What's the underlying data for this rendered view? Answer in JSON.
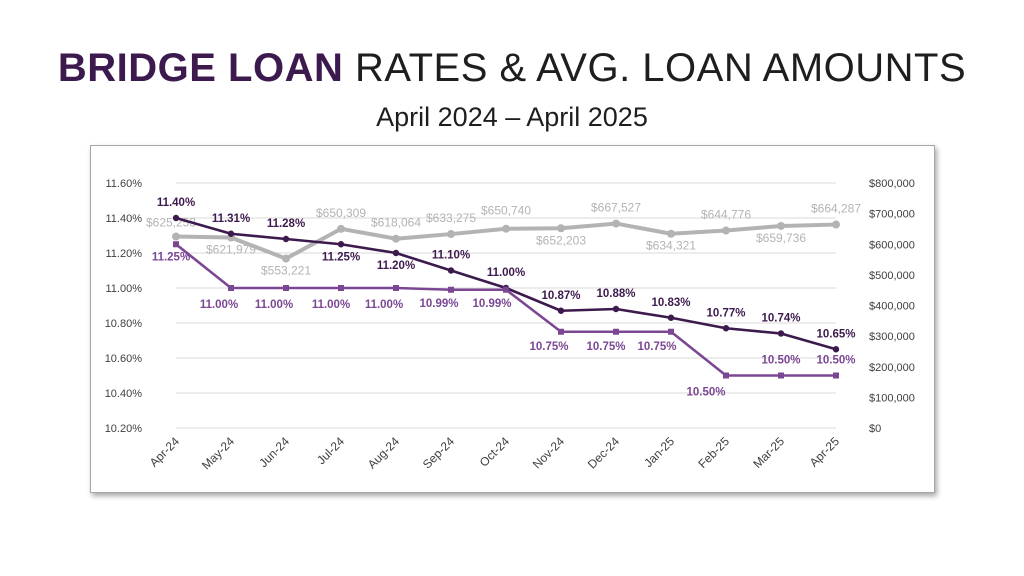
{
  "header": {
    "title_accent": "BRIDGE LOAN",
    "title_rest": "RATES & AVG. LOAN AMOUNTS",
    "subtitle": "April 2024 – April 2025"
  },
  "colors": {
    "rate_dark": "#3d1a4e",
    "rate_purple": "#7b4793",
    "amount_gray": "#b3b3b3",
    "accent_text": "#3d1a4e"
  },
  "chart_data": {
    "type": "line",
    "categories": [
      "Apr-24",
      "May-24",
      "Jun-24",
      "Jul-24",
      "Aug-24",
      "Sep-24",
      "Oct-24",
      "Nov-24",
      "Dec-24",
      "Jan-25",
      "Feb-25",
      "Mar-25",
      "Apr-25"
    ],
    "y_left": {
      "min": 10.2,
      "max": 11.6,
      "step": 0.2,
      "ticks": [
        "10.20%",
        "10.40%",
        "10.60%",
        "10.80%",
        "11.00%",
        "11.20%",
        "11.40%",
        "11.60%"
      ]
    },
    "y_right": {
      "min": 0,
      "max": 800000,
      "step": 100000,
      "ticks": [
        "$0",
        "$100,000",
        "$200,000",
        "$300,000",
        "$400,000",
        "$500,000",
        "$600,000",
        "$700,000",
        "$800,000"
      ]
    },
    "grid": true,
    "series": [
      {
        "axis": "right",
        "color": "#b3b3b3",
        "marker": "circle",
        "values": [
          625253,
          621979,
          553221,
          650309,
          618064,
          633275,
          650740,
          652203,
          667527,
          634321,
          644776,
          659736,
          664287
        ],
        "labels": [
          "$625,253",
          "$621,979",
          "$553,221",
          "$650,309",
          "$618,064",
          "$633,275",
          "$650,740",
          "$652,203",
          "$667,527",
          "$634,321",
          "$644,776",
          "$659,736",
          "$664,287"
        ]
      },
      {
        "axis": "left",
        "color": "#3d1a4e",
        "marker": "circle",
        "values": [
          11.4,
          11.31,
          11.28,
          11.25,
          11.2,
          11.1,
          11.0,
          10.87,
          10.88,
          10.83,
          10.77,
          10.74,
          10.65
        ],
        "labels": [
          "11.40%",
          "11.31%",
          "11.28%",
          "11.25%",
          "11.20%",
          "11.10%",
          "11.00%",
          "10.87%",
          "10.88%",
          "10.83%",
          "10.77%",
          "10.74%",
          "10.65%"
        ]
      },
      {
        "axis": "left",
        "color": "#7b4793",
        "marker": "square",
        "values": [
          11.25,
          11.0,
          11.0,
          11.0,
          11.0,
          10.99,
          10.99,
          10.75,
          10.75,
          10.75,
          10.5,
          10.5,
          10.5
        ],
        "labels": [
          "11.25%",
          "11.00%",
          "11.00%",
          "11.00%",
          "11.00%",
          "10.99%",
          "10.99%",
          "10.75%",
          "10.75%",
          "10.75%",
          "10.50%",
          "10.50%",
          "10.50%"
        ]
      }
    ]
  }
}
